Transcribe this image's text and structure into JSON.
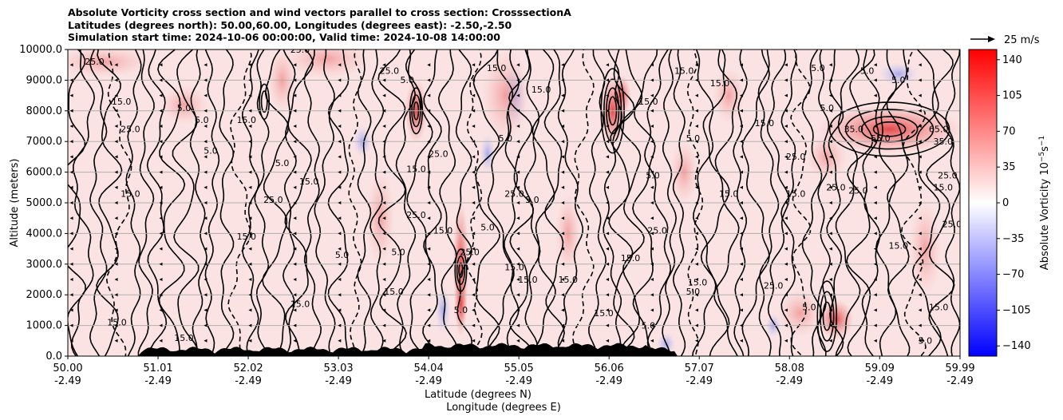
{
  "titles": {
    "line1": "Absolute Vorticity cross section and wind vectors parallel to cross section: CrosssectionA",
    "line2": "Latitudes (degrees north): 50.00,60.00, Longitudes (degrees east): -2.50,-2.50",
    "line3": "Simulation start time: 2024-10-06 00:00:00, Valid time: 2024-10-08 14:00:00"
  },
  "chart_data": {
    "type": "heatmap",
    "ylabel": "Altitude (meters)",
    "xlabel_lat": "Latitude (degrees N)",
    "xlabel_lon": "Longitude (degrees E)",
    "ylim": [
      0,
      10000
    ],
    "xlim": [
      50.0,
      59.99
    ],
    "y_ticks": [
      "0.0",
      "1000.0",
      "2000.0",
      "3000.0",
      "4000.0",
      "5000.0",
      "6000.0",
      "7000.0",
      "8000.0",
      "9000.0",
      "10000.0"
    ],
    "x_ticks": [
      {
        "lat": "50.00",
        "lon": "-2.49"
      },
      {
        "lat": "51.01",
        "lon": "-2.49"
      },
      {
        "lat": "52.02",
        "lon": "-2.49"
      },
      {
        "lat": "53.03",
        "lon": "-2.49"
      },
      {
        "lat": "54.04",
        "lon": "-2.49"
      },
      {
        "lat": "55.05",
        "lon": "-2.49"
      },
      {
        "lat": "56.06",
        "lon": "-2.49"
      },
      {
        "lat": "57.07",
        "lon": "-2.49"
      },
      {
        "lat": "58.08",
        "lon": "-2.49"
      },
      {
        "lat": "59.09",
        "lon": "-2.49"
      },
      {
        "lat": "59.99",
        "lon": "-2.49"
      }
    ],
    "grid": "horizontal",
    "colorbar": {
      "label": "Absolute Vorticity 10",
      "label_exp": "−5",
      "label_unit": "s",
      "label_unit_exp": "−1",
      "range": [
        -150,
        150
      ],
      "ticks": [
        "140",
        "105",
        "70",
        "35",
        "0",
        "−35",
        "−70",
        "−105",
        "−140"
      ],
      "tick_values": [
        140,
        105,
        70,
        35,
        0,
        -35,
        -70,
        -105,
        -140
      ],
      "colors": [
        "#0000ff",
        "#ffffff",
        "#ff0000"
      ]
    },
    "wind_key": {
      "label": "25 m/s"
    },
    "contour_labels": [
      {
        "text": "25.0",
        "lat": 50.3,
        "alt": 9500
      },
      {
        "text": "15.0",
        "lat": 50.6,
        "alt": 8200
      },
      {
        "text": "25.0",
        "lat": 50.7,
        "alt": 7300
      },
      {
        "text": "15.0",
        "lat": 50.7,
        "alt": 5200
      },
      {
        "text": "15.0",
        "lat": 50.55,
        "alt": 1000
      },
      {
        "text": "5.0",
        "lat": 51.3,
        "alt": 8000
      },
      {
        "text": "5.0",
        "lat": 51.5,
        "alt": 7600
      },
      {
        "text": "5.0",
        "lat": 51.6,
        "alt": 6600
      },
      {
        "text": "15.0",
        "lat": 51.3,
        "alt": 500
      },
      {
        "text": "25.0",
        "lat": 52.6,
        "alt": 9900
      },
      {
        "text": "15.0",
        "lat": 52.0,
        "alt": 7600
      },
      {
        "text": "5.0",
        "lat": 52.4,
        "alt": 6200
      },
      {
        "text": "15.0",
        "lat": 52.7,
        "alt": 5600
      },
      {
        "text": "25.0",
        "lat": 52.3,
        "alt": 5000
      },
      {
        "text": "15.0",
        "lat": 52.0,
        "alt": 3800
      },
      {
        "text": "15.0",
        "lat": 52.6,
        "alt": 1600
      },
      {
        "text": "5.0",
        "lat": 53.07,
        "alt": 3200
      },
      {
        "text": "25.0",
        "lat": 53.6,
        "alt": 9200
      },
      {
        "text": "5.0",
        "lat": 53.8,
        "alt": 8900
      },
      {
        "text": "15.0",
        "lat": 53.9,
        "alt": 6000
      },
      {
        "text": "25.0",
        "lat": 54.15,
        "alt": 6500
      },
      {
        "text": "15.0",
        "lat": 54.2,
        "alt": 4000
      },
      {
        "text": "25.0",
        "lat": 53.9,
        "alt": 4500
      },
      {
        "text": "5.0",
        "lat": 53.7,
        "alt": 3300
      },
      {
        "text": "15.0",
        "lat": 53.65,
        "alt": 2000
      },
      {
        "text": "5.0",
        "lat": 54.4,
        "alt": 1400
      },
      {
        "text": "25.0",
        "lat": 54.5,
        "alt": 3300
      },
      {
        "text": "15.0",
        "lat": 54.8,
        "alt": 9300
      },
      {
        "text": "5.0",
        "lat": 54.9,
        "alt": 7000
      },
      {
        "text": "15.0",
        "lat": 55.3,
        "alt": 8600
      },
      {
        "text": "5.0",
        "lat": 55.2,
        "alt": 5000
      },
      {
        "text": "15.0",
        "lat": 55.0,
        "alt": 2800
      },
      {
        "text": "15.0",
        "lat": 55.15,
        "alt": 2400
      },
      {
        "text": "5.0",
        "lat": 54.7,
        "alt": 4100
      },
      {
        "text": "25.0",
        "lat": 55.0,
        "alt": 5200
      },
      {
        "text": "15.0",
        "lat": 55.6,
        "alt": 2400
      },
      {
        "text": "15.0",
        "lat": 56.5,
        "alt": 8200
      },
      {
        "text": "5.0",
        "lat": 56.55,
        "alt": 5800
      },
      {
        "text": "15.0",
        "lat": 56.3,
        "alt": 3100
      },
      {
        "text": "25.0",
        "lat": 56.6,
        "alt": 4000
      },
      {
        "text": "15.0",
        "lat": 56.0,
        "alt": 1300
      },
      {
        "text": "5.0",
        "lat": 56.5,
        "alt": 900
      },
      {
        "text": "15.0",
        "lat": 56.9,
        "alt": 9200
      },
      {
        "text": "5.0",
        "lat": 57.0,
        "alt": 7000
      },
      {
        "text": "15.0",
        "lat": 57.3,
        "alt": 8800
      },
      {
        "text": "15.0",
        "lat": 57.4,
        "alt": 5200
      },
      {
        "text": "15.0",
        "lat": 57.05,
        "alt": 2300
      },
      {
        "text": "5.0",
        "lat": 57.0,
        "alt": 2000
      },
      {
        "text": "15.0",
        "lat": 57.8,
        "alt": 7500
      },
      {
        "text": "25.0",
        "lat": 57.9,
        "alt": 2200
      },
      {
        "text": "5.0",
        "lat": 58.4,
        "alt": 9300
      },
      {
        "text": "25.0",
        "lat": 58.15,
        "alt": 6400
      },
      {
        "text": "15.0",
        "lat": 58.15,
        "alt": 5200
      },
      {
        "text": "5.0",
        "lat": 58.5,
        "alt": 8000
      },
      {
        "text": "5.0",
        "lat": 58.3,
        "alt": 1500
      },
      {
        "text": "25.0",
        "lat": 58.6,
        "alt": 5400
      },
      {
        "text": "25.0",
        "lat": 58.85,
        "alt": 5300
      },
      {
        "text": "35.0",
        "lat": 58.8,
        "alt": 7300
      },
      {
        "text": "5.0",
        "lat": 58.95,
        "alt": 9200
      },
      {
        "text": "5.0",
        "lat": 59.3,
        "alt": 8900
      },
      {
        "text": "55.0",
        "lat": 59.1,
        "alt": 7000
      },
      {
        "text": "65.0",
        "lat": 59.75,
        "alt": 7300
      },
      {
        "text": "35.0",
        "lat": 59.8,
        "alt": 6900
      },
      {
        "text": "25.0",
        "lat": 59.85,
        "alt": 5800
      },
      {
        "text": "15.0",
        "lat": 59.8,
        "alt": 5400
      },
      {
        "text": "25.0",
        "lat": 59.9,
        "alt": 4200
      },
      {
        "text": "15.0",
        "lat": 59.75,
        "alt": 1500
      },
      {
        "text": "5.0",
        "lat": 59.6,
        "alt": 400
      },
      {
        "text": "15.0",
        "lat": 59.3,
        "alt": 3500
      }
    ]
  }
}
